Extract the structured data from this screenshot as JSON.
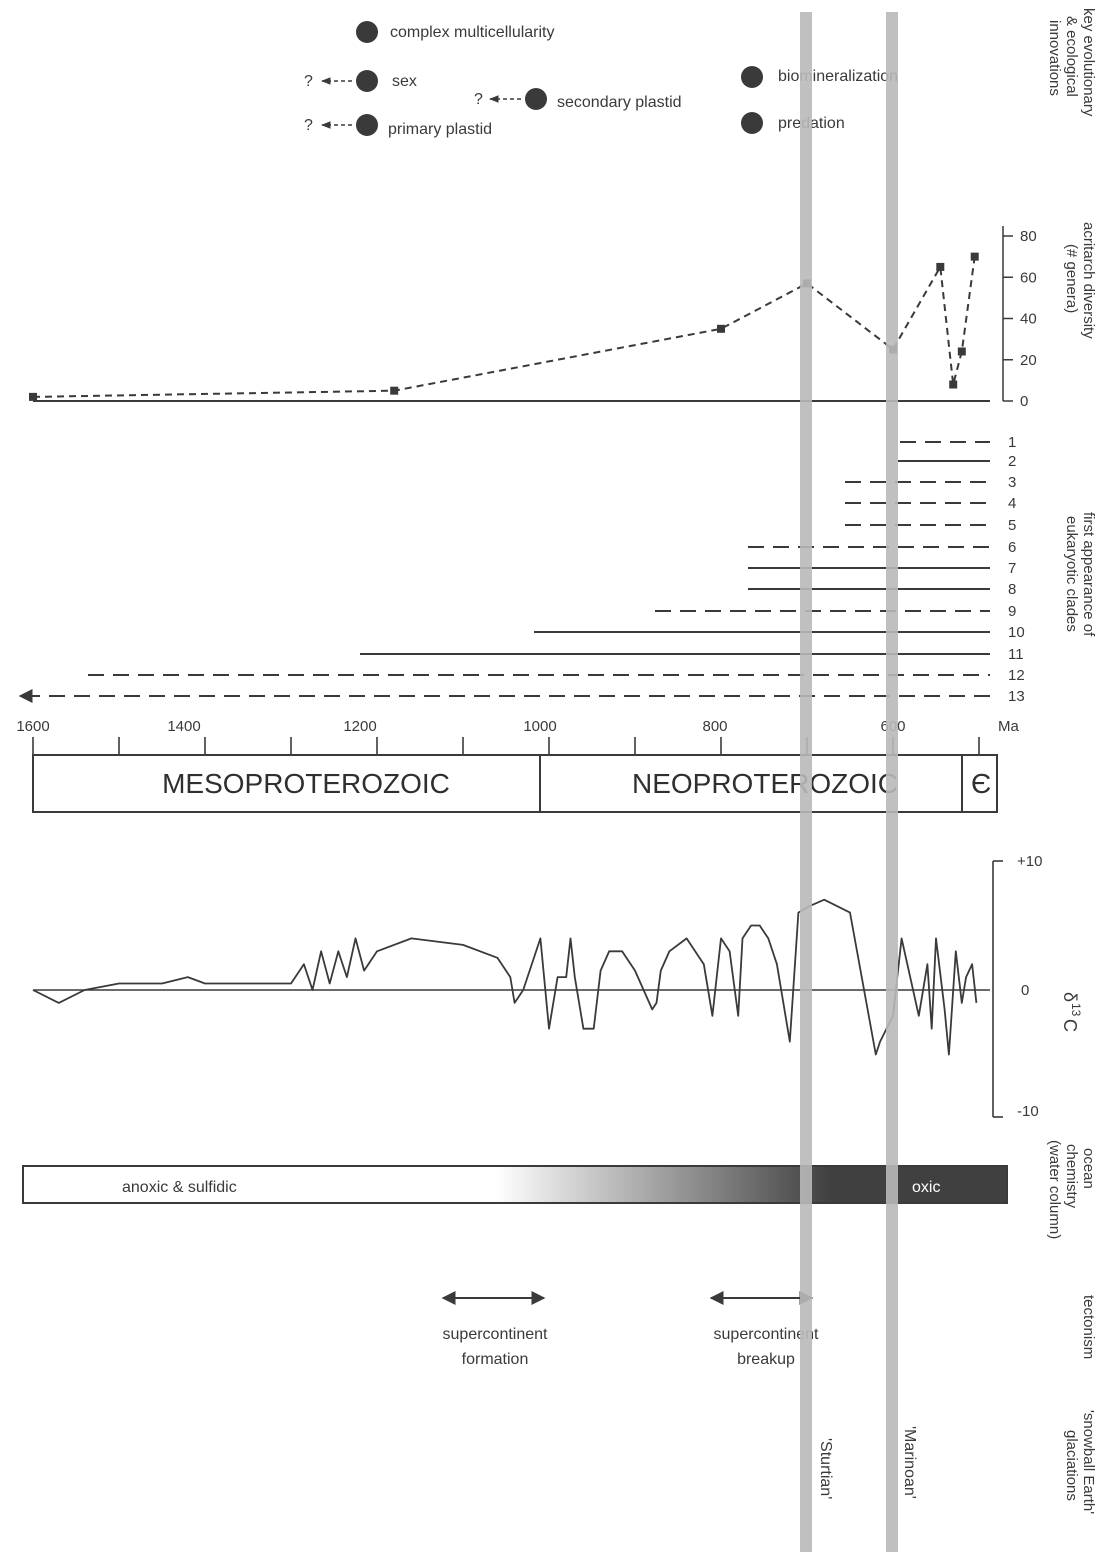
{
  "innovations": {
    "row_title": [
      "key evolutionary",
      "& ecological",
      "innovations"
    ],
    "question_mark": "?",
    "events": [
      {
        "label": "complex multicellularity",
        "uncertain_earlier": false
      },
      {
        "label": "sex",
        "uncertain_earlier": true
      },
      {
        "label": "primary plastid",
        "uncertain_earlier": true
      },
      {
        "label": "secondary plastid",
        "uncertain_earlier": true
      },
      {
        "label": "biomineralization",
        "uncertain_earlier": false
      },
      {
        "label": "predation",
        "uncertain_earlier": false
      }
    ]
  },
  "acritarch": {
    "row_title": [
      "acritarch diversity",
      "(# genera)"
    ],
    "ticks": [
      "0",
      "20",
      "40",
      "60",
      "80"
    ]
  },
  "clades": {
    "row_title": [
      "first appearance of",
      "eukaryotic clades"
    ],
    "labels": [
      "1",
      "2",
      "3",
      "4",
      "5",
      "6",
      "7",
      "8",
      "9",
      "10",
      "11",
      "12",
      "13"
    ]
  },
  "timescale": {
    "ticks": [
      "1600",
      "1400",
      "1200",
      "1000",
      "800",
      "600"
    ],
    "unit": "Ma",
    "eras": [
      "MESOPROTEROZOIC",
      "NEOPROTEROZOIC",
      "Є"
    ]
  },
  "carbon": {
    "row_title_delta": "δ",
    "row_title_sup": "13",
    "row_title_c": "C",
    "ticks": [
      "+10",
      "0",
      "-10"
    ]
  },
  "ocean": {
    "row_title": [
      "ocean",
      "chemistry",
      "(water column)"
    ],
    "left_label": "anoxic & sulfidic",
    "right_label": "oxic",
    "dark_color": "#404040"
  },
  "tectonism": {
    "row_title": "tectonism",
    "events": [
      {
        "label": [
          "supercontinent",
          "formation"
        ]
      },
      {
        "label": [
          "supercontinent",
          "breakup"
        ]
      }
    ]
  },
  "glaciations": {
    "row_title": [
      "'snowball Earth'",
      "glaciations"
    ],
    "names": [
      "'Sturtian'",
      "'Marinoan'"
    ],
    "band_color": "#b9b9b9"
  },
  "chart_data": [
    {
      "type": "line",
      "title": "",
      "xlabel": "Ma",
      "ylabel": "acritarch diversity (# genera)",
      "x": [
        1600,
        1180,
        800,
        700,
        600,
        545,
        530,
        520,
        505
      ],
      "values": [
        2,
        5,
        35,
        57,
        25,
        65,
        8,
        24,
        70
      ],
      "xlim": [
        1600,
        500
      ],
      "ylim": [
        0,
        80
      ]
    },
    {
      "type": "line",
      "title": "",
      "xlabel": "Ma",
      "ylabel": "δ13C",
      "x": [
        1600,
        1570,
        1540,
        1500,
        1450,
        1420,
        1400,
        1300,
        1285,
        1275,
        1265,
        1255,
        1245,
        1235,
        1225,
        1215,
        1200,
        1160,
        1100,
        1060,
        1045,
        1040,
        1030,
        1010,
        1000,
        990,
        980,
        975,
        970,
        960,
        948,
        940,
        930,
        920,
        915,
        900,
        880,
        875,
        870,
        860,
        840,
        820,
        810,
        800,
        790,
        780,
        775,
        765,
        755,
        745,
        735,
        720,
        710,
        697,
        680,
        650,
        620,
        615,
        600,
        590,
        570,
        560,
        555,
        550,
        540,
        535,
        527,
        520,
        515,
        508,
        503
      ],
      "values": [
        0,
        -1,
        0,
        0.5,
        0.5,
        1,
        0.5,
        0.5,
        2,
        0,
        3,
        0.5,
        3,
        1,
        4,
        1.5,
        3,
        4,
        3.5,
        2.5,
        1,
        -1,
        0,
        4,
        -3,
        1,
        1,
        4,
        1,
        -3,
        -3,
        1.5,
        3,
        3,
        3,
        1.5,
        -1.5,
        -1,
        1.5,
        3,
        4,
        2,
        -2,
        4,
        3,
        -2,
        4,
        5,
        5,
        4,
        2,
        -4,
        6,
        6.5,
        7,
        6,
        -5,
        -4,
        -2,
        4,
        -2,
        2,
        -3,
        4,
        -1.5,
        -5,
        3,
        -1,
        1,
        2,
        -1
      ],
      "xlim": [
        1600,
        500
      ],
      "ylim": [
        -10,
        10
      ]
    }
  ]
}
